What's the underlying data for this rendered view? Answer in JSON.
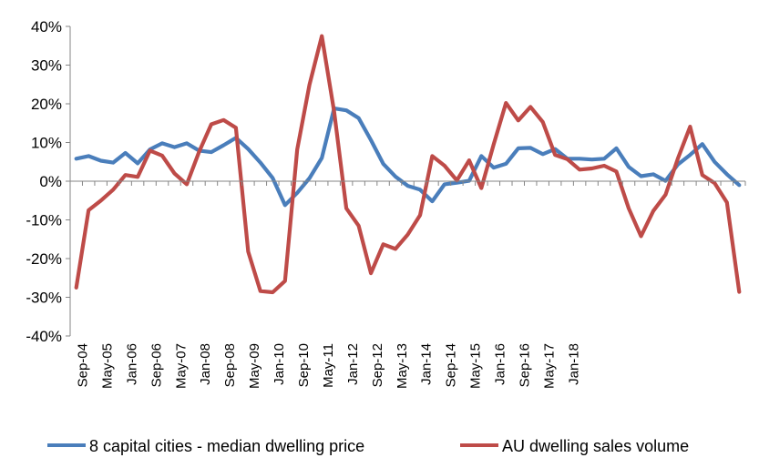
{
  "chart_data": {
    "type": "line",
    "title": "",
    "xlabel": "",
    "ylabel": "",
    "ylim": [
      -40,
      40
    ],
    "y_ticks": [
      "40%",
      "30%",
      "20%",
      "10%",
      "0%",
      "-10%",
      "-20%",
      "-30%",
      "-40%"
    ],
    "y_tick_values": [
      40,
      30,
      20,
      10,
      0,
      -10,
      -20,
      -30,
      -40
    ],
    "x_tick_labels": [
      "Sep-04",
      "May-05",
      "Jan-06",
      "Sep-06",
      "May-07",
      "Jan-08",
      "Sep-08",
      "May-09",
      "Jan-10",
      "Sep-10",
      "May-11",
      "Jan-12",
      "Sep-12",
      "May-13",
      "Jan-14",
      "Sep-14",
      "May-15",
      "Jan-16",
      "Sep-16",
      "May-17",
      "Jan-18"
    ],
    "x_tick_every_n_points": 2,
    "grid": false,
    "legend_position": "bottom",
    "series": [
      {
        "name": "8 capital cities - median dwelling price",
        "color": "#4a7ebb",
        "values": [
          5.8,
          6.5,
          5.3,
          4.8,
          7.3,
          4.6,
          8.2,
          9.8,
          8.8,
          9.8,
          7.9,
          7.5,
          9.3,
          11.2,
          8.3,
          4.8,
          0.8,
          -6.2,
          -3.0,
          0.8,
          6.0,
          18.8,
          18.3,
          16.3,
          10.6,
          4.5,
          1.2,
          -1.2,
          -2.2,
          -5.2,
          -0.8,
          -0.4,
          0.1,
          6.5,
          3.5,
          4.5,
          8.5,
          8.6,
          7.0,
          8.3,
          5.8,
          5.8,
          5.6,
          5.8,
          8.5,
          3.7,
          1.3,
          1.8,
          0.1,
          4.3,
          6.8,
          9.6,
          5.0,
          1.8,
          -1.0
        ]
      },
      {
        "name": "AU dwelling sales volume",
        "color": "#be4b48",
        "values": [
          -27.5,
          -7.5,
          -5.0,
          -2.2,
          1.6,
          1.1,
          7.9,
          6.6,
          2.0,
          -0.8,
          7.6,
          14.7,
          15.8,
          13.8,
          -18.2,
          -28.4,
          -28.7,
          -25.8,
          8.2,
          25.0,
          37.5,
          18.0,
          -7.0,
          -11.5,
          -23.8,
          -16.3,
          -17.5,
          -13.8,
          -8.8,
          6.5,
          4.0,
          0.2,
          5.4,
          -1.8,
          9.5,
          20.2,
          15.7,
          19.2,
          15.3,
          6.8,
          5.7,
          3.0,
          3.3,
          4.0,
          2.5,
          -7.0,
          -14.2,
          -7.7,
          -3.5,
          5.8,
          14.1,
          1.6,
          -0.5,
          -5.5,
          -28.6
        ]
      }
    ]
  }
}
